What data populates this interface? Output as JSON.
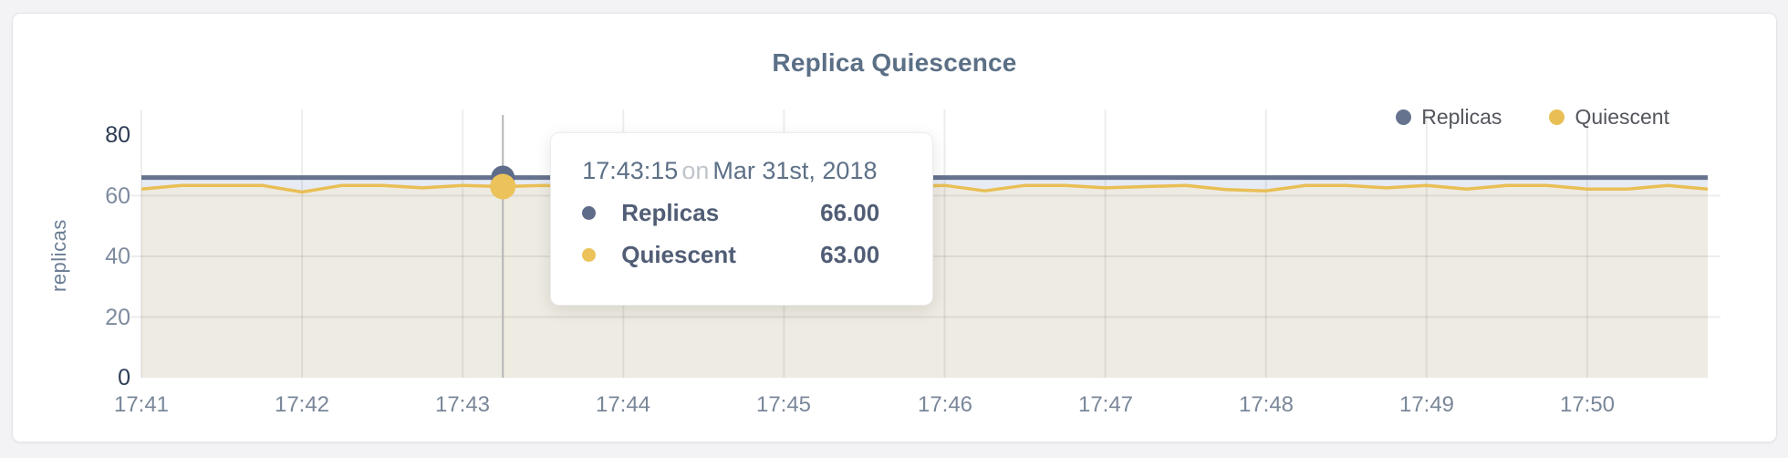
{
  "chart_data": {
    "type": "line",
    "title": "Replica Quiescence",
    "ylabel": "replicas",
    "ylim": [
      0,
      80
    ],
    "yticks": [
      0,
      20,
      40,
      60,
      80
    ],
    "xticks": [
      "17:41",
      "17:42",
      "17:43",
      "17:44",
      "17:45",
      "17:46",
      "17:47",
      "17:48",
      "17:49",
      "17:50"
    ],
    "x_start": "17:41:00",
    "x_end": "17:50:45",
    "point_interval_s": 15,
    "tick_interval_s": 60,
    "grid": true,
    "legend_position": "top-right",
    "x_times": [
      "17:41:00",
      "17:41:15",
      "17:41:30",
      "17:41:45",
      "17:42:00",
      "17:42:15",
      "17:42:30",
      "17:42:45",
      "17:43:00",
      "17:43:15",
      "17:43:30",
      "17:43:45",
      "17:44:00",
      "17:44:15",
      "17:44:30",
      "17:44:45",
      "17:45:00",
      "17:45:15",
      "17:45:30",
      "17:45:45",
      "17:46:00",
      "17:46:15",
      "17:46:30",
      "17:46:45",
      "17:47:00",
      "17:47:15",
      "17:47:30",
      "17:47:45",
      "17:48:00",
      "17:48:15",
      "17:48:30",
      "17:48:45",
      "17:49:00",
      "17:49:15",
      "17:49:30",
      "17:49:45",
      "17:50:00",
      "17:50:15",
      "17:50:30",
      "17:50:45"
    ],
    "series": [
      {
        "name": "Replicas",
        "color": "#66738e",
        "dot_color": "#5e6c89",
        "fill": "#e7ebf3",
        "values": [
          66,
          66,
          66,
          66,
          66,
          66,
          66,
          66,
          66,
          66,
          66,
          66,
          66,
          66,
          66,
          66,
          66,
          66,
          66,
          66,
          66,
          66,
          66,
          66,
          66,
          66,
          66,
          66,
          66,
          66,
          66,
          66,
          66,
          66,
          66,
          66,
          66,
          66,
          66,
          66
        ]
      },
      {
        "name": "Quiescent",
        "color": "#e9bf55",
        "dot_color": "#ecc35a",
        "fill": "#eeebe2",
        "values": [
          62.2,
          63.4,
          63.4,
          63.4,
          61.2,
          63.4,
          63.4,
          62.6,
          63.4,
          63,
          63.4,
          63,
          62.2,
          63.4,
          63,
          62.6,
          63.4,
          63.4,
          62.6,
          63,
          63.4,
          61.6,
          63.4,
          63.4,
          62.6,
          63,
          63.4,
          62,
          61.6,
          63.4,
          63.4,
          62.6,
          63.4,
          62.2,
          63.4,
          63.4,
          62.2,
          62.2,
          63.4,
          62.2
        ]
      }
    ],
    "selected": {
      "index": 9,
      "time": "17:43:15",
      "date_connector": "on",
      "date": "Mar 31st, 2018",
      "rows": [
        {
          "name": "Replicas",
          "value": "66.00"
        },
        {
          "name": "Quiescent",
          "value": "63.00"
        }
      ]
    },
    "colors": {
      "gridline": "rgba(0,0,0,0.07)",
      "crosshair": "#b6b6b6",
      "title": "#5b7086",
      "axis_text": "#7e8b9e",
      "axis_text_dark": "#2d3b54",
      "x_axis_text": "#7a8799"
    }
  }
}
